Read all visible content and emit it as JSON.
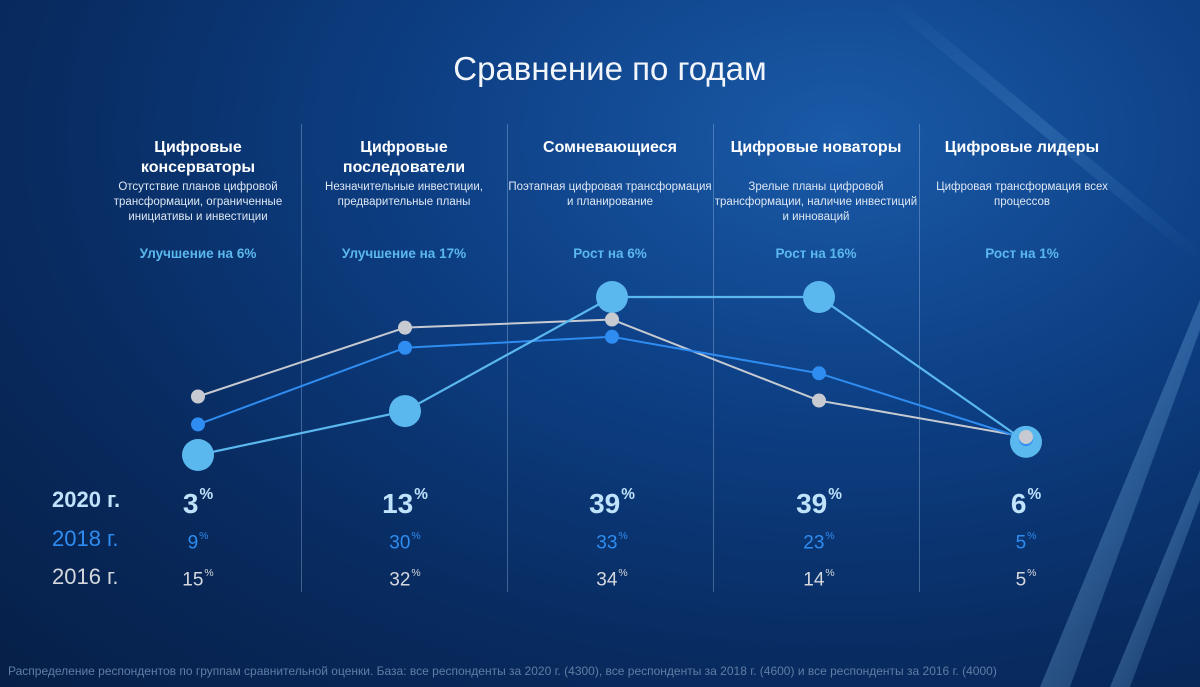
{
  "title": "Сравнение по годам",
  "colors": {
    "y2020": "#5bb8ee",
    "y2018": "#2f8cf0",
    "y2016": "#c7cbd1"
  },
  "categories": [
    {
      "name": "Цифровые консерваторы",
      "desc": "Отсутствие планов цифровой трансформации, ограниченные инициативы и инвестиции",
      "change": "Улучшение на 6%"
    },
    {
      "name": "Цифровые последователи",
      "desc": "Незначительные инвестиции, предварительные планы",
      "change": "Улучшение на 17%"
    },
    {
      "name": "Сомневающиеся",
      "desc": "Поэтапная цифровая трансформация и планирование",
      "change": "Рост на 6%"
    },
    {
      "name": "Цифровые новаторы",
      "desc": "Зрелые планы цифровой трансформации, наличие инвестиций и инноваций",
      "change": "Рост на 16%"
    },
    {
      "name": "Цифровые лидеры",
      "desc": "Цифровая трансформация всех процессов",
      "change": "Рост на 1%"
    }
  ],
  "row_labels": {
    "y2020": "2020 г.",
    "y2018": "2018 г.",
    "y2016": "2016 г."
  },
  "unit": "%",
  "chart_data": {
    "type": "line",
    "categories": [
      "Цифровые консерваторы",
      "Цифровые последователи",
      "Сомневающиеся",
      "Цифровые новаторы",
      "Цифровые лидеры"
    ],
    "series": [
      {
        "name": "2020 г.",
        "values": [
          3,
          13,
          39,
          39,
          6
        ]
      },
      {
        "name": "2018 г.",
        "values": [
          9,
          30,
          33,
          23,
          5
        ]
      },
      {
        "name": "2016 г.",
        "values": [
          15,
          32,
          34,
          14,
          5
        ]
      }
    ]
  },
  "footnote": "Распределение респондентов по группам сравнительной оценки. База: все респонденты за 2020 г. (4300), все респонденты за 2018 г. (4600) и все респонденты за 2016 г. (4000)"
}
